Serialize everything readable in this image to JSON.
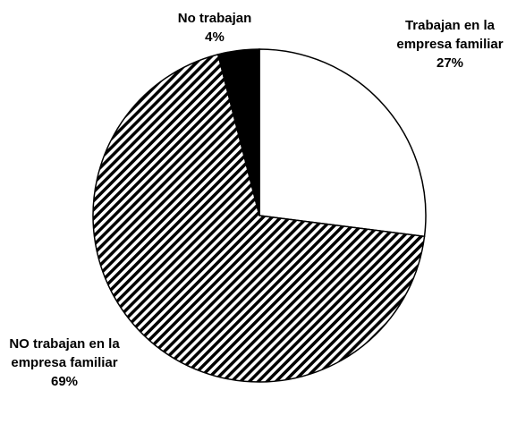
{
  "chart_data": {
    "type": "pie",
    "categories": [
      "Trabajan en la empresa familiar",
      "NO trabajan en la empresa familiar",
      "No trabajan"
    ],
    "values": [
      27,
      69,
      4
    ],
    "value_labels": [
      "27%",
      "69%",
      "4%"
    ],
    "colors": [
      "#ffffff",
      "#000000",
      "#000000"
    ],
    "hatch": [
      false,
      true,
      false
    ]
  }
}
